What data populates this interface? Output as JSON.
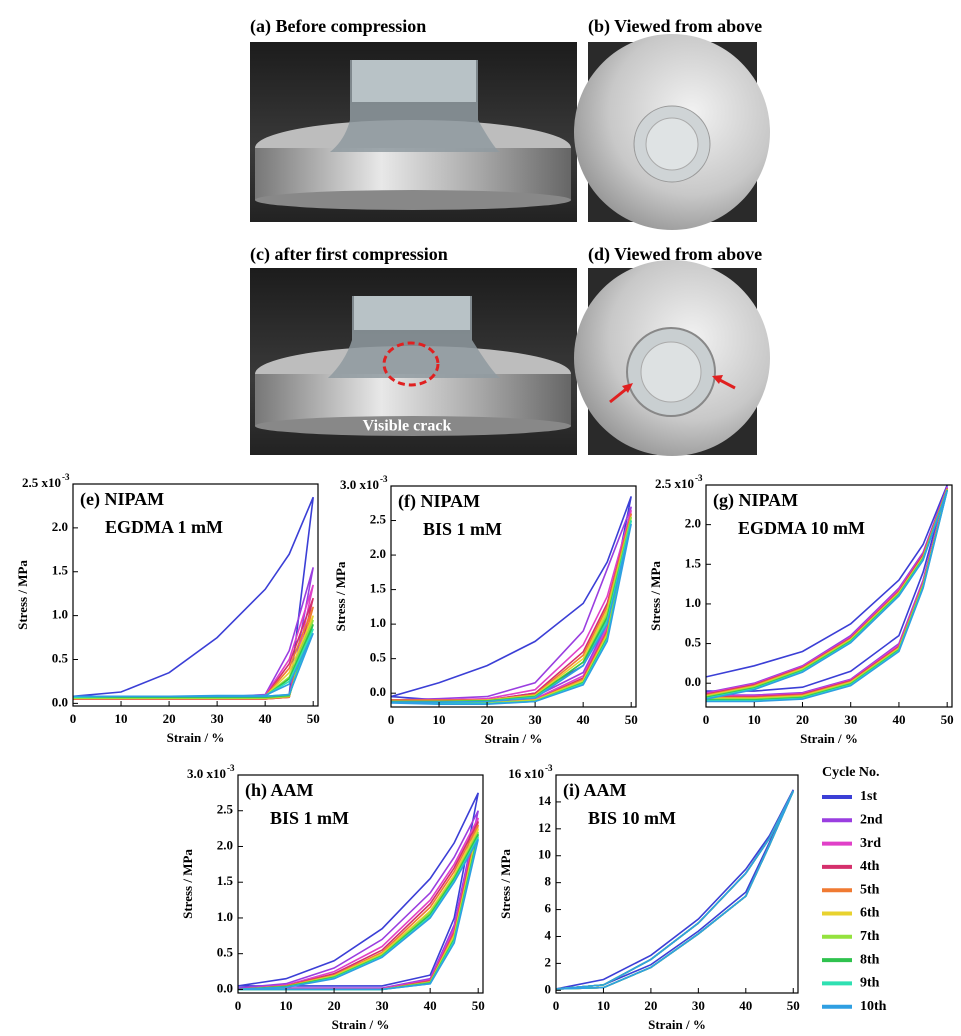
{
  "photos": {
    "panels": [
      "(a) Before compression",
      "(b) Viewed from above",
      "(c) after first compression",
      "(d) Viewed from above"
    ],
    "crack_label": "Visible crack"
  },
  "legend": {
    "title": "Cycle No.",
    "items": [
      {
        "name": "1st",
        "color": "#3b3fd6"
      },
      {
        "name": "2nd",
        "color": "#9a3ee0"
      },
      {
        "name": "3rd",
        "color": "#e040c8"
      },
      {
        "name": "4th",
        "color": "#d5306c"
      },
      {
        "name": "5th",
        "color": "#f07a32"
      },
      {
        "name": "6th",
        "color": "#e8d22e"
      },
      {
        "name": "7th",
        "color": "#94e23e"
      },
      {
        "name": "8th",
        "color": "#2fc24e"
      },
      {
        "name": "9th",
        "color": "#2fe0b2"
      },
      {
        "name": "10th",
        "color": "#2f9fe2"
      }
    ]
  },
  "chart_data": [
    {
      "type": "line",
      "title": "(e) NIPAM",
      "subtitle": "EGDMA 1 mM",
      "xlabel": "Strain / %",
      "ylabel": "Stress / MPa",
      "y_exponent": "-3",
      "xlim": [
        0,
        51
      ],
      "ylim": [
        -0.03,
        2.5
      ],
      "xticks": [
        0,
        10,
        20,
        30,
        40,
        50
      ],
      "yticks": [
        {
          "value": 0,
          "label": "0.0"
        },
        0.5,
        {
          "value": 1,
          "label": "1.0"
        },
        1.5,
        {
          "value": 2,
          "label": "2.0"
        },
        {
          "value": 2.5,
          "label": "2.5 x10"
        }
      ],
      "x": [
        0,
        10,
        20,
        30,
        40,
        45,
        50,
        45,
        40,
        30,
        20,
        10,
        0
      ],
      "series": [
        {
          "values": [
            0.08,
            0.13,
            0.35,
            0.75,
            1.3,
            1.7,
            2.35,
            0.1,
            0.06,
            0.06,
            0.06,
            0.06,
            0.06
          ]
        },
        {
          "values": [
            0.06,
            0.06,
            0.07,
            0.07,
            0.1,
            0.6,
            1.55,
            0.08,
            0.05,
            0.05,
            0.05,
            0.05,
            0.05
          ]
        },
        {
          "values": [
            0.05,
            0.06,
            0.06,
            0.07,
            0.09,
            0.5,
            1.35,
            0.07,
            0.05,
            0.05,
            0.05,
            0.05,
            0.05
          ]
        },
        {
          "values": [
            0.05,
            0.05,
            0.06,
            0.06,
            0.08,
            0.45,
            1.2,
            0.07,
            0.05,
            0.05,
            0.05,
            0.05,
            0.05
          ]
        },
        {
          "values": [
            0.05,
            0.05,
            0.06,
            0.06,
            0.08,
            0.4,
            1.1,
            0.07,
            0.05,
            0.05,
            0.05,
            0.05,
            0.05
          ]
        },
        {
          "values": [
            0.06,
            0.06,
            0.06,
            0.07,
            0.08,
            0.35,
            1.0,
            0.08,
            0.06,
            0.06,
            0.06,
            0.06,
            0.06
          ]
        },
        {
          "values": [
            0.06,
            0.06,
            0.07,
            0.07,
            0.08,
            0.3,
            0.95,
            0.08,
            0.06,
            0.06,
            0.06,
            0.06,
            0.06
          ]
        },
        {
          "values": [
            0.07,
            0.07,
            0.07,
            0.07,
            0.08,
            0.28,
            0.9,
            0.09,
            0.07,
            0.07,
            0.07,
            0.07,
            0.07
          ]
        },
        {
          "values": [
            0.07,
            0.08,
            0.08,
            0.08,
            0.09,
            0.25,
            0.85,
            0.1,
            0.08,
            0.08,
            0.08,
            0.08,
            0.08
          ]
        },
        {
          "values": [
            0.08,
            0.08,
            0.08,
            0.09,
            0.09,
            0.22,
            0.8,
            0.1,
            0.08,
            0.08,
            0.08,
            0.08,
            0.08
          ]
        }
      ]
    },
    {
      "type": "line",
      "title": "(f) NIPAM",
      "subtitle": "BIS 1 mM",
      "xlabel": "Strain / %",
      "ylabel": "Stress / MPa",
      "y_exponent": "-3",
      "xlim": [
        0,
        51
      ],
      "ylim": [
        -0.2,
        3.0
      ],
      "xticks": [
        0,
        10,
        20,
        30,
        40,
        50
      ],
      "yticks": [
        {
          "value": 0,
          "label": "0.0"
        },
        0.5,
        {
          "value": 1,
          "label": "1.0"
        },
        1.5,
        {
          "value": 2,
          "label": "2.0"
        },
        2.5,
        {
          "value": 3,
          "label": "3.0 x10"
        }
      ],
      "x": [
        0,
        10,
        20,
        30,
        40,
        45,
        50,
        45,
        40,
        30,
        20,
        10,
        0
      ],
      "series": [
        {
          "values": [
            -0.05,
            0.15,
            0.4,
            0.75,
            1.3,
            1.9,
            2.85,
            1.1,
            0.4,
            0.0,
            -0.1,
            -0.1,
            -0.05
          ]
        },
        {
          "values": [
            -0.1,
            -0.08,
            -0.05,
            0.15,
            0.9,
            1.8,
            2.7,
            1.0,
            0.3,
            -0.05,
            -0.12,
            -0.12,
            -0.1
          ]
        },
        {
          "values": [
            -0.1,
            -0.1,
            -0.08,
            0.05,
            0.7,
            1.4,
            2.65,
            0.95,
            0.25,
            -0.08,
            -0.13,
            -0.13,
            -0.1
          ]
        },
        {
          "values": [
            -0.1,
            -0.1,
            -0.1,
            0.0,
            0.6,
            1.3,
            2.6,
            0.9,
            0.22,
            -0.1,
            -0.13,
            -0.13,
            -0.1
          ]
        },
        {
          "values": [
            -0.1,
            -0.1,
            -0.1,
            -0.02,
            0.55,
            1.25,
            2.6,
            0.88,
            0.2,
            -0.1,
            -0.14,
            -0.14,
            -0.12
          ]
        },
        {
          "values": [
            -0.12,
            -0.12,
            -0.1,
            -0.03,
            0.5,
            1.2,
            2.55,
            0.85,
            0.18,
            -0.1,
            -0.14,
            -0.14,
            -0.12
          ]
        },
        {
          "values": [
            -0.12,
            -0.12,
            -0.11,
            -0.04,
            0.45,
            1.15,
            2.55,
            0.82,
            0.16,
            -0.11,
            -0.15,
            -0.15,
            -0.12
          ]
        },
        {
          "values": [
            -0.12,
            -0.12,
            -0.11,
            -0.05,
            0.45,
            1.1,
            2.5,
            0.8,
            0.15,
            -0.12,
            -0.15,
            -0.15,
            -0.13
          ]
        },
        {
          "values": [
            -0.13,
            -0.13,
            -0.12,
            -0.06,
            0.4,
            1.05,
            2.5,
            0.78,
            0.14,
            -0.12,
            -0.15,
            -0.15,
            -0.13
          ]
        },
        {
          "values": [
            -0.13,
            -0.13,
            -0.12,
            -0.07,
            0.4,
            1.0,
            2.45,
            0.75,
            0.12,
            -0.12,
            -0.16,
            -0.16,
            -0.14
          ]
        }
      ]
    },
    {
      "type": "line",
      "title": "(g) NIPAM",
      "subtitle": "EGDMA 10 mM",
      "xlabel": "Strain / %",
      "ylabel": "Stress / MPa",
      "y_exponent": "-3",
      "xlim": [
        0,
        51
      ],
      "ylim": [
        -0.3,
        2.5
      ],
      "xticks": [
        0,
        10,
        20,
        30,
        40,
        50
      ],
      "yticks": [
        {
          "value": 0,
          "label": "0.0"
        },
        0.5,
        {
          "value": 1,
          "label": "1.0"
        },
        1.5,
        {
          "value": 2,
          "label": "2.0"
        },
        {
          "value": 2.5,
          "label": "2.5 x10"
        }
      ],
      "x": [
        0,
        10,
        20,
        30,
        40,
        45,
        50,
        45,
        40,
        30,
        20,
        10,
        0
      ],
      "series": [
        {
          "values": [
            0.08,
            0.22,
            0.4,
            0.75,
            1.3,
            1.75,
            2.5,
            1.4,
            0.6,
            0.15,
            -0.05,
            -0.1,
            -0.1
          ]
        },
        {
          "values": [
            -0.12,
            0.0,
            0.22,
            0.6,
            1.2,
            1.65,
            2.48,
            1.3,
            0.5,
            0.05,
            -0.12,
            -0.15,
            -0.15
          ]
        },
        {
          "values": [
            -0.13,
            -0.01,
            0.21,
            0.58,
            1.18,
            1.63,
            2.47,
            1.28,
            0.48,
            0.04,
            -0.13,
            -0.16,
            -0.16
          ]
        },
        {
          "values": [
            -0.14,
            -0.02,
            0.2,
            0.57,
            1.16,
            1.62,
            2.46,
            1.26,
            0.46,
            0.03,
            -0.14,
            -0.17,
            -0.17
          ]
        },
        {
          "values": [
            -0.15,
            -0.03,
            0.19,
            0.56,
            1.15,
            1.6,
            2.45,
            1.25,
            0.45,
            0.02,
            -0.15,
            -0.18,
            -0.18
          ]
        },
        {
          "values": [
            -0.16,
            -0.04,
            0.18,
            0.55,
            1.14,
            1.59,
            2.45,
            1.24,
            0.44,
            0.01,
            -0.16,
            -0.19,
            -0.19
          ]
        },
        {
          "values": [
            -0.17,
            -0.05,
            0.17,
            0.54,
            1.13,
            1.58,
            2.44,
            1.23,
            0.43,
            0.0,
            -0.17,
            -0.2,
            -0.2
          ]
        },
        {
          "values": [
            -0.18,
            -0.06,
            0.16,
            0.53,
            1.12,
            1.57,
            2.44,
            1.22,
            0.42,
            -0.01,
            -0.18,
            -0.21,
            -0.21
          ]
        },
        {
          "values": [
            -0.19,
            -0.07,
            0.15,
            0.52,
            1.11,
            1.56,
            2.43,
            1.21,
            0.41,
            -0.02,
            -0.19,
            -0.22,
            -0.22
          ]
        },
        {
          "values": [
            -0.2,
            -0.08,
            0.14,
            0.51,
            1.1,
            1.55,
            2.43,
            1.2,
            0.4,
            -0.03,
            -0.2,
            -0.23,
            -0.23
          ]
        }
      ]
    },
    {
      "type": "line",
      "title": "(h) AAM",
      "subtitle": "BIS 1 mM",
      "xlabel": "Strain / %",
      "ylabel": "Stress / MPa",
      "y_exponent": "-3",
      "xlim": [
        0,
        51
      ],
      "ylim": [
        -0.05,
        3.0
      ],
      "xticks": [
        0,
        10,
        20,
        30,
        40,
        50
      ],
      "yticks": [
        {
          "value": 0,
          "label": "0.0"
        },
        0.5,
        {
          "value": 1,
          "label": "1.0"
        },
        1.5,
        {
          "value": 2,
          "label": "2.0"
        },
        2.5,
        {
          "value": 3,
          "label": "3.0 x10"
        }
      ],
      "x": [
        0,
        10,
        20,
        30,
        40,
        45,
        50,
        45,
        40,
        30,
        20,
        10,
        0
      ],
      "series": [
        {
          "values": [
            0.05,
            0.15,
            0.4,
            0.85,
            1.55,
            2.05,
            2.75,
            1.0,
            0.2,
            0.05,
            0.05,
            0.05,
            0.05
          ]
        },
        {
          "values": [
            0.02,
            0.08,
            0.3,
            0.7,
            1.35,
            1.85,
            2.5,
            0.9,
            0.15,
            0.02,
            0.02,
            0.02,
            0.02
          ]
        },
        {
          "values": [
            0.0,
            0.06,
            0.25,
            0.6,
            1.25,
            1.75,
            2.4,
            0.85,
            0.13,
            0.01,
            0.01,
            0.01,
            0.0
          ]
        },
        {
          "values": [
            0.0,
            0.05,
            0.22,
            0.55,
            1.2,
            1.7,
            2.35,
            0.8,
            0.12,
            0.0,
            0.0,
            0.0,
            0.0
          ]
        },
        {
          "values": [
            0.0,
            0.05,
            0.2,
            0.52,
            1.15,
            1.65,
            2.3,
            0.78,
            0.11,
            0.0,
            0.0,
            0.0,
            0.0
          ]
        },
        {
          "values": [
            0.0,
            0.04,
            0.19,
            0.5,
            1.1,
            1.6,
            2.25,
            0.75,
            0.1,
            0.0,
            0.0,
            0.0,
            0.0
          ]
        },
        {
          "values": [
            0.0,
            0.04,
            0.18,
            0.48,
            1.08,
            1.57,
            2.2,
            0.72,
            0.1,
            0.0,
            0.0,
            0.0,
            0.0
          ]
        },
        {
          "values": [
            0.0,
            0.04,
            0.17,
            0.47,
            1.05,
            1.55,
            2.17,
            0.7,
            0.09,
            0.0,
            0.0,
            0.0,
            0.0
          ]
        },
        {
          "values": [
            0.0,
            0.03,
            0.16,
            0.46,
            1.02,
            1.52,
            2.13,
            0.68,
            0.08,
            0.0,
            0.0,
            0.0,
            0.0
          ]
        },
        {
          "values": [
            0.0,
            0.03,
            0.15,
            0.45,
            1.0,
            1.5,
            2.1,
            0.65,
            0.08,
            0.0,
            0.0,
            0.0,
            0.0
          ]
        }
      ]
    },
    {
      "type": "line",
      "title": "(i) AAM",
      "subtitle": "BIS 10 mM",
      "xlabel": "Strain / %",
      "ylabel": "Stress / MPa",
      "y_exponent": "-3",
      "xlim": [
        0,
        51
      ],
      "ylim": [
        -0.2,
        16
      ],
      "xticks": [
        0,
        10,
        20,
        30,
        40,
        50
      ],
      "yticks": [
        0,
        2,
        4,
        6,
        8,
        10,
        12,
        14,
        {
          "value": 16,
          "label": "16 x10"
        }
      ],
      "x": [
        0,
        10,
        20,
        30,
        40,
        45,
        50,
        45,
        40,
        30,
        20,
        10,
        0
      ],
      "series": [
        {
          "values": [
            0.1,
            0.8,
            2.6,
            5.3,
            9.0,
            11.5,
            14.9,
            11.0,
            7.3,
            4.4,
            1.9,
            0.4,
            0.1
          ]
        },
        {
          "values": [
            0.1,
            0.4,
            2.3,
            5.0,
            8.7,
            11.3,
            14.8,
            10.8,
            7.0,
            4.2,
            1.7,
            0.2,
            0.1
          ]
        },
        {
          "values": [
            0.1,
            0.4,
            2.3,
            5.0,
            8.7,
            11.3,
            14.8,
            10.8,
            7.0,
            4.2,
            1.7,
            0.2,
            0.1
          ]
        },
        {
          "values": [
            0.1,
            0.4,
            2.3,
            5.0,
            8.7,
            11.3,
            14.8,
            10.8,
            7.0,
            4.2,
            1.7,
            0.2,
            0.1
          ]
        },
        {
          "values": [
            0.1,
            0.4,
            2.3,
            5.0,
            8.7,
            11.3,
            14.8,
            10.8,
            7.0,
            4.2,
            1.7,
            0.2,
            0.1
          ]
        },
        {
          "values": [
            0.1,
            0.4,
            2.3,
            5.0,
            8.7,
            11.3,
            14.8,
            10.8,
            7.0,
            4.2,
            1.7,
            0.2,
            0.1
          ]
        },
        {
          "values": [
            0.1,
            0.4,
            2.3,
            5.0,
            8.7,
            11.3,
            14.8,
            10.8,
            7.0,
            4.2,
            1.7,
            0.2,
            0.1
          ]
        },
        {
          "values": [
            0.1,
            0.4,
            2.3,
            5.0,
            8.7,
            11.3,
            14.8,
            10.8,
            7.0,
            4.2,
            1.7,
            0.2,
            0.1
          ]
        },
        {
          "values": [
            0.1,
            0.4,
            2.3,
            5.0,
            8.7,
            11.3,
            14.8,
            10.8,
            7.0,
            4.2,
            1.7,
            0.2,
            0.1
          ]
        },
        {
          "values": [
            0.1,
            0.4,
            2.3,
            5.0,
            8.7,
            11.3,
            14.8,
            10.8,
            7.0,
            4.2,
            1.7,
            0.2,
            0.1
          ]
        }
      ]
    }
  ]
}
